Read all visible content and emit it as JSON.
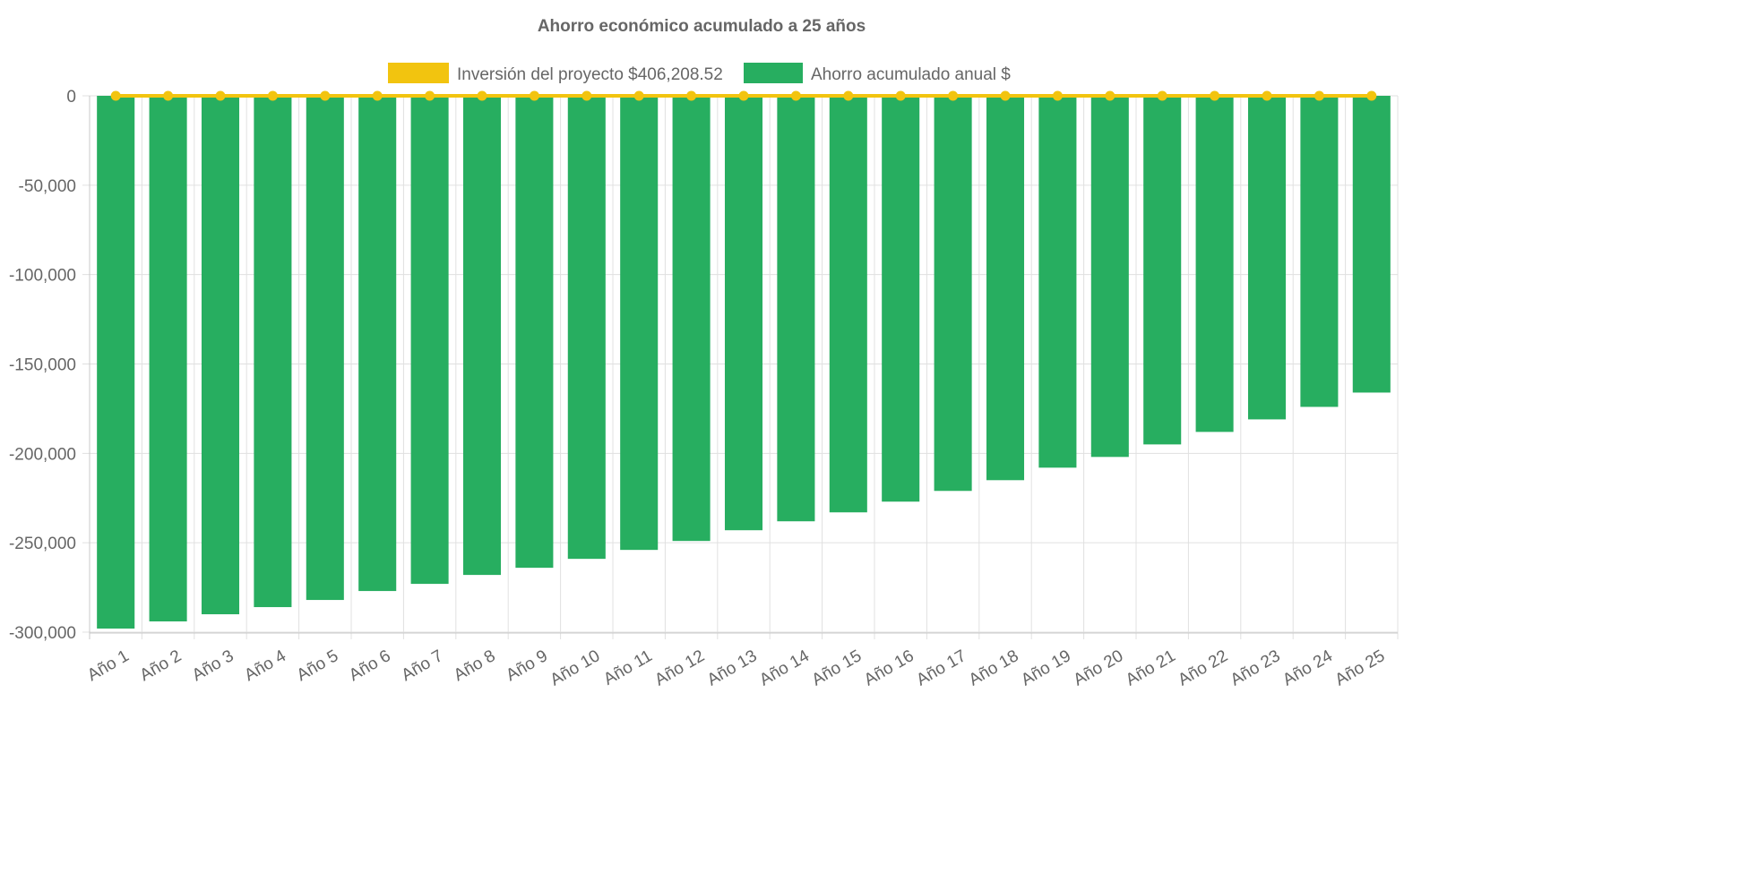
{
  "chart_data": {
    "type": "bar",
    "title": "Ahorro económico acumulado a 25 años",
    "xlabel": "",
    "ylabel": "",
    "ylim": [
      -300000,
      0
    ],
    "yticks": [
      0,
      -50000,
      -100000,
      -150000,
      -200000,
      -250000,
      -300000
    ],
    "ytick_labels": [
      "0",
      "-50,000",
      "-100,000",
      "-150,000",
      "-200,000",
      "-250,000",
      "-300,000"
    ],
    "grid": true,
    "legend_position": "top",
    "categories": [
      "Año 1",
      "Año 2",
      "Año 3",
      "Año 4",
      "Año 5",
      "Año 6",
      "Año 7",
      "Año 8",
      "Año 9",
      "Año 10",
      "Año 11",
      "Año 12",
      "Año 13",
      "Año 14",
      "Año 15",
      "Año 16",
      "Año 17",
      "Año 18",
      "Año 19",
      "Año 20",
      "Año 21",
      "Año 22",
      "Año 23",
      "Año 24",
      "Año 25"
    ],
    "series": [
      {
        "name": "Inversión del proyecto $406,208.52",
        "type": "line",
        "color": "#f2c40f",
        "values": [
          0,
          0,
          0,
          0,
          0,
          0,
          0,
          0,
          0,
          0,
          0,
          0,
          0,
          0,
          0,
          0,
          0,
          0,
          0,
          0,
          0,
          0,
          0,
          0,
          0
        ]
      },
      {
        "name": "Ahorro acumulado anual $",
        "type": "bar",
        "color": "#27ae60",
        "values": [
          -298000,
          -294000,
          -290000,
          -286000,
          -282000,
          -277000,
          -273000,
          -268000,
          -264000,
          -259000,
          -254000,
          -249000,
          -243000,
          -238000,
          -233000,
          -227000,
          -221000,
          -215000,
          -208000,
          -202000,
          -195000,
          -188000,
          -181000,
          -174000,
          -166000
        ]
      }
    ]
  }
}
